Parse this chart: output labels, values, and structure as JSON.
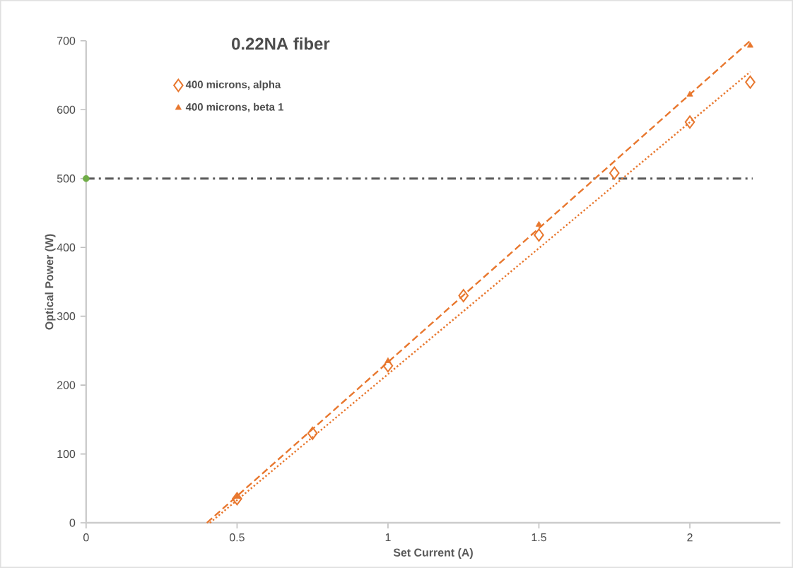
{
  "chart_data": {
    "type": "scatter",
    "title": "0.22NA fiber",
    "xlabel": "Set Current (A)",
    "ylabel": "Optical Power (W)",
    "xlim": [
      0,
      2.3
    ],
    "ylim": [
      0,
      700
    ],
    "xticks": [
      0,
      0.5,
      1,
      1.5,
      2
    ],
    "yticks": [
      0,
      100,
      200,
      300,
      400,
      500,
      600,
      700
    ],
    "legend": "top left",
    "series": [
      {
        "name": "400 microns, alpha",
        "marker": "diamond",
        "color": "#e8772e",
        "x": [
          0.5,
          0.75,
          1.0,
          1.25,
          1.5,
          1.75,
          2.0,
          2.2
        ],
        "values": [
          35,
          130,
          228,
          330,
          418,
          508,
          582,
          640
        ]
      },
      {
        "name": "400 microns, beta 1",
        "marker": "triangle",
        "color": "#e8772e",
        "x": [
          0.5,
          1.0,
          1.5,
          2.0,
          2.2
        ],
        "values": [
          38,
          235,
          433,
          622,
          693
        ]
      },
      {
        "type": "line",
        "line_style": "dotted",
        "color": "#e8772e",
        "x": [
          0.41,
          2.2
        ],
        "values": [
          0,
          655
        ]
      },
      {
        "type": "line",
        "line_style": "dashed",
        "color": "#e8772e",
        "x": [
          0.4,
          2.2
        ],
        "values": [
          0,
          700
        ]
      },
      {
        "marker": "circle",
        "color": "#70ad47",
        "x": [
          0
        ],
        "values": [
          500
        ]
      }
    ],
    "ref_lines": [
      {
        "axis": "y",
        "value": 500,
        "color": "#595959",
        "line_style": "dashdot"
      }
    ]
  }
}
